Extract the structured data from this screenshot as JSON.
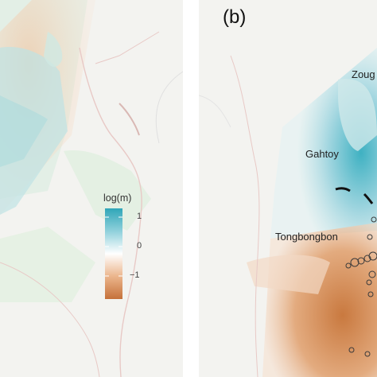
{
  "panel_b": {
    "letter": "(b)"
  },
  "places": {
    "zoug": "Zoug",
    "gahtoy": "Gahtoy",
    "tongbongbon": "Tongbongbon"
  },
  "legend": {
    "title": "log(m)",
    "ticks": [
      "1",
      "0",
      "−1"
    ],
    "colors": {
      "high": "#2fa6b8",
      "mid": "#ffffff",
      "low": "#c5713a"
    }
  }
}
